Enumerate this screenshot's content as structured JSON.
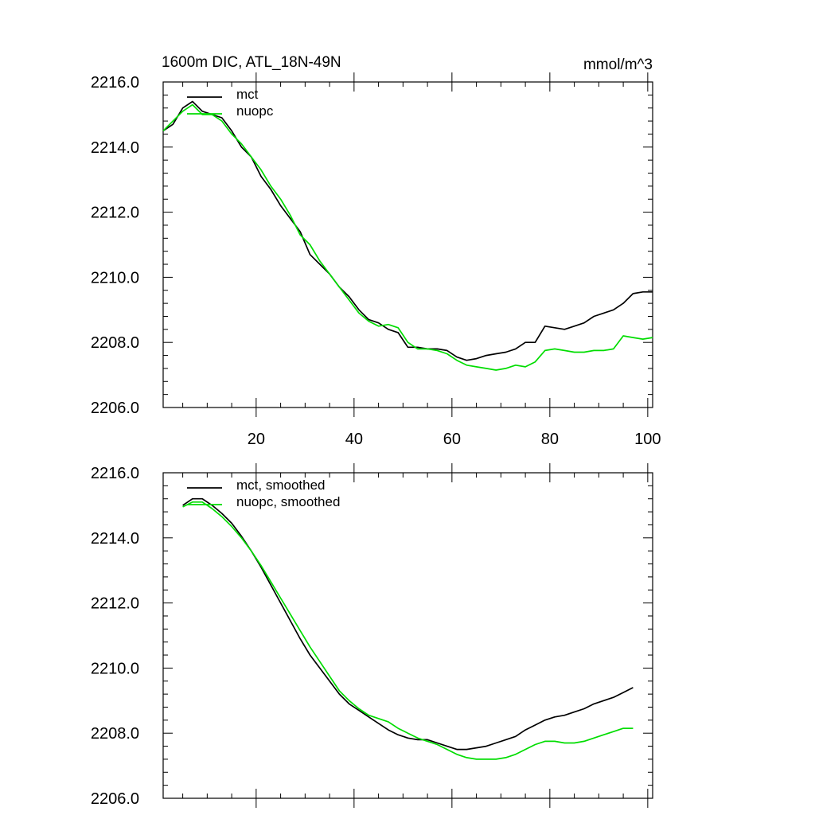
{
  "chart_data": [
    {
      "type": "line",
      "title": "1600m DIC, ATL_18N-49N",
      "units_label": "mmol/m^3",
      "xlabel": "",
      "ylabel": "",
      "xlim": [
        1,
        101
      ],
      "ylim": [
        2206.0,
        2216.0
      ],
      "x_ticks": [
        20,
        40,
        60,
        80,
        100
      ],
      "x_tick_labels": [
        "20",
        "40",
        "60",
        "80",
        "100"
      ],
      "y_ticks": [
        2206,
        2208,
        2210,
        2212,
        2214,
        2216
      ],
      "y_tick_labels": [
        "2206.0",
        "2208.0",
        "2210.0",
        "2212.0",
        "2214.0",
        "2216.0"
      ],
      "grid": false,
      "legend_position": "top-left",
      "series": [
        {
          "name": "mct",
          "color": "#000000",
          "x": [
            1,
            3,
            5,
            7,
            9,
            11,
            13,
            15,
            17,
            19,
            21,
            23,
            25,
            27,
            29,
            31,
            33,
            35,
            37,
            39,
            41,
            43,
            45,
            47,
            49,
            51,
            53,
            55,
            57,
            59,
            61,
            63,
            65,
            67,
            69,
            71,
            73,
            75,
            77,
            79,
            81,
            83,
            85,
            87,
            89,
            91,
            93,
            95,
            97,
            99,
            101
          ],
          "values": [
            2214.5,
            2214.7,
            2215.2,
            2215.4,
            2215.1,
            2215.0,
            2214.9,
            2214.5,
            2214.0,
            2213.7,
            2213.1,
            2212.7,
            2212.2,
            2211.8,
            2211.4,
            2210.7,
            2210.4,
            2210.1,
            2209.7,
            2209.4,
            2209.0,
            2208.7,
            2208.6,
            2208.4,
            2208.3,
            2207.85,
            2207.85,
            2207.8,
            2207.8,
            2207.75,
            2207.55,
            2207.45,
            2207.5,
            2207.6,
            2207.65,
            2207.7,
            2207.8,
            2208.0,
            2208.0,
            2208.5,
            2208.45,
            2208.4,
            2208.5,
            2208.6,
            2208.8,
            2208.9,
            2209.0,
            2209.2,
            2209.5,
            2209.55,
            2209.55
          ]
        },
        {
          "name": "nuopc",
          "color": "#00dd00",
          "x": [
            1,
            3,
            5,
            7,
            9,
            11,
            13,
            15,
            17,
            19,
            21,
            23,
            25,
            27,
            29,
            31,
            33,
            35,
            37,
            39,
            41,
            43,
            45,
            47,
            49,
            51,
            53,
            55,
            57,
            59,
            61,
            63,
            65,
            67,
            69,
            71,
            73,
            75,
            77,
            79,
            81,
            83,
            85,
            87,
            89,
            91,
            93,
            95,
            97,
            99,
            101
          ],
          "values": [
            2214.5,
            2214.8,
            2215.1,
            2215.3,
            2215.0,
            2215.0,
            2214.8,
            2214.4,
            2214.1,
            2213.7,
            2213.3,
            2212.8,
            2212.4,
            2211.9,
            2211.3,
            2211.0,
            2210.5,
            2210.1,
            2209.7,
            2209.3,
            2208.9,
            2208.65,
            2208.5,
            2208.55,
            2208.45,
            2208.0,
            2207.8,
            2207.8,
            2207.75,
            2207.65,
            2207.45,
            2207.3,
            2207.25,
            2207.2,
            2207.15,
            2207.2,
            2207.3,
            2207.25,
            2207.4,
            2207.75,
            2207.8,
            2207.75,
            2207.7,
            2207.7,
            2207.75,
            2207.75,
            2207.8,
            2208.2,
            2208.15,
            2208.1,
            2208.15
          ]
        }
      ]
    },
    {
      "type": "line",
      "title": "",
      "xlabel": "",
      "ylabel": "",
      "xlim": [
        1,
        101
      ],
      "ylim": [
        2206.0,
        2216.0
      ],
      "x_ticks": [
        20,
        40,
        60,
        80,
        100
      ],
      "x_tick_labels": [],
      "y_ticks": [
        2206,
        2208,
        2210,
        2212,
        2214,
        2216
      ],
      "y_tick_labels": [
        "2206.0",
        "2208.0",
        "2210.0",
        "2212.0",
        "2214.0",
        "2216.0"
      ],
      "grid": false,
      "legend_position": "top-left",
      "series": [
        {
          "name": "mct, smoothed",
          "color": "#000000",
          "x": [
            5,
            7,
            9,
            11,
            13,
            15,
            17,
            19,
            21,
            23,
            25,
            27,
            29,
            31,
            33,
            35,
            37,
            39,
            41,
            43,
            45,
            47,
            49,
            51,
            53,
            55,
            57,
            59,
            61,
            63,
            65,
            67,
            69,
            71,
            73,
            75,
            77,
            79,
            81,
            83,
            85,
            87,
            89,
            91,
            93,
            95,
            97
          ],
          "values": [
            2215.0,
            2215.2,
            2215.2,
            2215.0,
            2214.75,
            2214.45,
            2214.05,
            2213.6,
            2213.1,
            2212.55,
            2212.0,
            2211.45,
            2210.9,
            2210.4,
            2210.0,
            2209.6,
            2209.2,
            2208.9,
            2208.7,
            2208.5,
            2208.3,
            2208.1,
            2207.95,
            2207.85,
            2207.8,
            2207.8,
            2207.7,
            2207.6,
            2207.5,
            2207.5,
            2207.55,
            2207.6,
            2207.7,
            2207.8,
            2207.9,
            2208.1,
            2208.25,
            2208.4,
            2208.5,
            2208.55,
            2208.65,
            2208.75,
            2208.9,
            2209.0,
            2209.1,
            2209.25,
            2209.4
          ]
        },
        {
          "name": "nuopc, smoothed",
          "color": "#00dd00",
          "x": [
            5,
            7,
            9,
            11,
            13,
            15,
            17,
            19,
            21,
            23,
            25,
            27,
            29,
            31,
            33,
            35,
            37,
            39,
            41,
            43,
            45,
            47,
            49,
            51,
            53,
            55,
            57,
            59,
            61,
            63,
            65,
            67,
            69,
            71,
            73,
            75,
            77,
            79,
            81,
            83,
            85,
            87,
            89,
            91,
            93,
            95,
            97
          ],
          "values": [
            2214.95,
            2215.1,
            2215.1,
            2214.9,
            2214.65,
            2214.35,
            2214.0,
            2213.6,
            2213.15,
            2212.65,
            2212.15,
            2211.65,
            2211.15,
            2210.65,
            2210.2,
            2209.75,
            2209.3,
            2209.0,
            2208.75,
            2208.55,
            2208.45,
            2208.35,
            2208.15,
            2208.0,
            2207.85,
            2207.75,
            2207.65,
            2207.5,
            2207.35,
            2207.25,
            2207.2,
            2207.2,
            2207.2,
            2207.25,
            2207.35,
            2207.5,
            2207.65,
            2207.75,
            2207.75,
            2207.7,
            2207.7,
            2207.75,
            2207.85,
            2207.95,
            2208.05,
            2208.15,
            2208.15
          ]
        }
      ]
    }
  ]
}
